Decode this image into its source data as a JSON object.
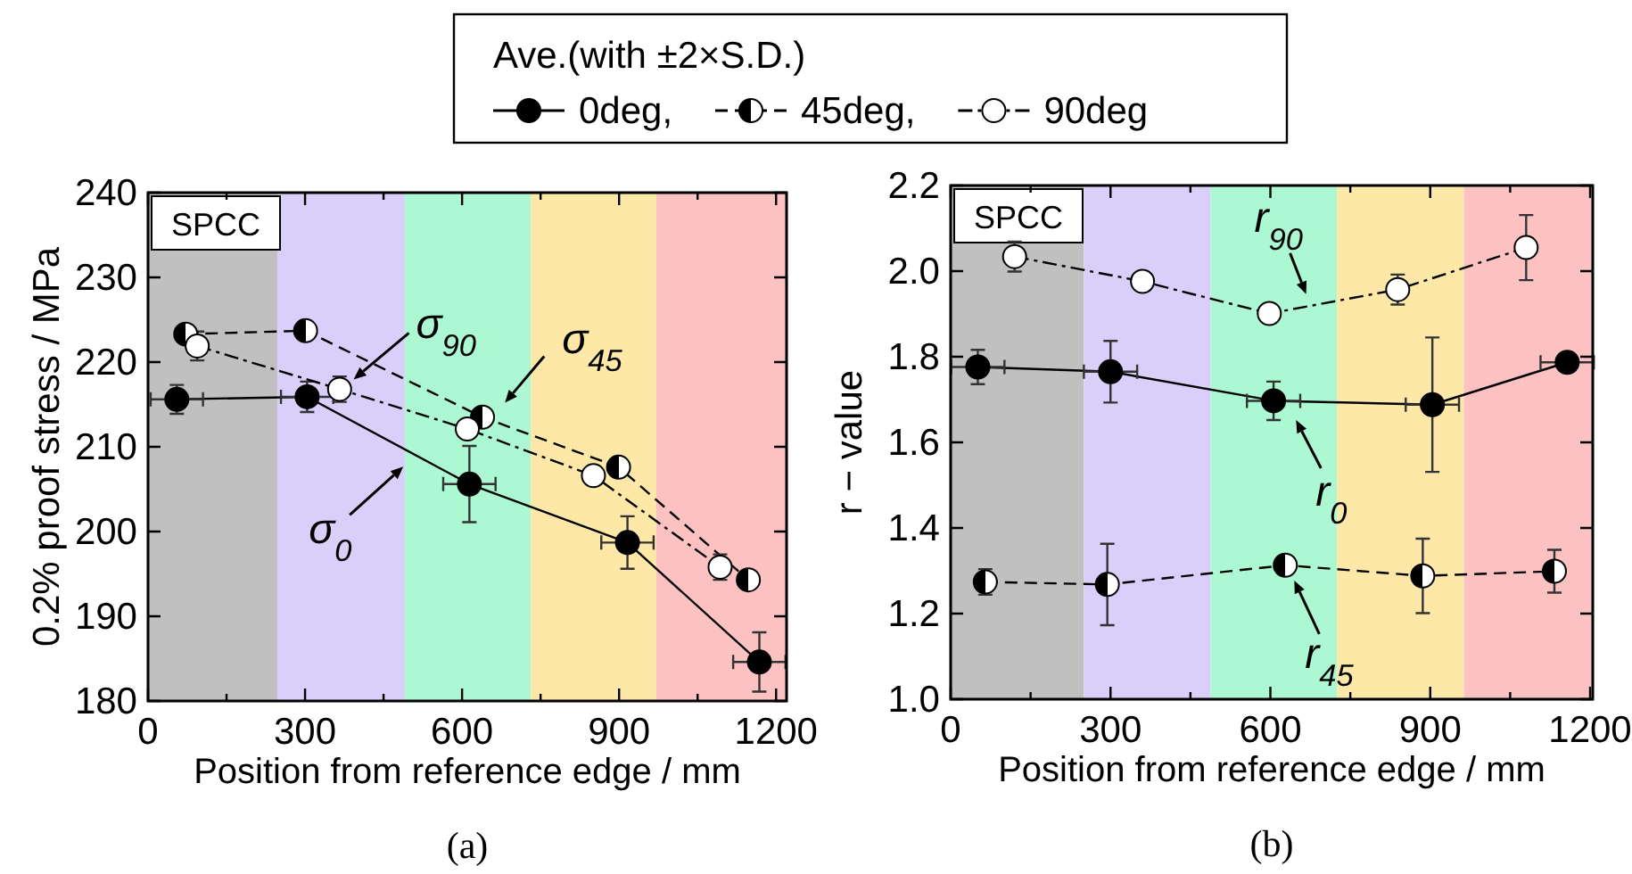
{
  "chart_data": [
    {
      "type": "line",
      "title": "(a)",
      "xlabel": "Position from reference edge / mm",
      "ylabel": "0.2% proof stress  / MPa",
      "legend_title": "Ave.(with ±2×S.D.)",
      "legend": "top",
      "xlim": [
        0,
        1220
      ],
      "ylim": [
        180,
        240
      ],
      "xticks": [
        0,
        {
          "value": 150,
          "label": null
        },
        300,
        {
          "value": 450,
          "label": null
        },
        600,
        {
          "value": 750,
          "label": null
        },
        900,
        {
          "value": 1050,
          "label": null
        },
        1200
      ],
      "yticks": [
        180,
        190,
        200,
        210,
        220,
        230,
        240
      ],
      "bands": [
        {
          "axis": "x",
          "from": 0,
          "to": 247,
          "color": "#c0c0c0"
        },
        {
          "axis": "x",
          "from": 247,
          "to": 491,
          "color": "#d9cffa"
        },
        {
          "axis": "x",
          "from": 491,
          "to": 731,
          "color": "#acf8d2"
        },
        {
          "axis": "x",
          "from": 731,
          "to": 971,
          "color": "#fde8a8"
        },
        {
          "axis": "x",
          "from": 971,
          "to": 1220,
          "color": "#fcc2c2"
        }
      ],
      "series": [
        {
          "name": "0deg,",
          "color": "#000000",
          "line_style": "solid",
          "marker": "circle",
          "x": [
            55,
            304,
            614,
            916,
            1168
          ],
          "values": [
            215.6,
            215.9,
            205.6,
            198.7,
            184.6
          ],
          "errors": [
            1.7,
            1.8,
            4.5,
            3.1,
            3.5
          ],
          "xerrors": [
            50,
            50,
            50,
            50,
            50
          ]
        },
        {
          "name": "45deg,",
          "color": "#000000",
          "line_style": "dashed",
          "marker": "circle",
          "x": [
            72,
            301,
            639,
            899,
            1147
          ],
          "values": [
            223.3,
            223.7,
            213.5,
            207.6,
            194.3
          ]
        },
        {
          "name": "90deg",
          "color": "#000000",
          "line_style": "dotted",
          "marker": "circle",
          "x": [
            94,
            366,
            610,
            851,
            1093
          ],
          "values": [
            221.9,
            216.8,
            212.1,
            206.6,
            195.8
          ],
          "errors": [
            1.7,
            1.5,
            null,
            null,
            1.5
          ]
        }
      ],
      "annotations": [
        "SPCC",
        "σ$_{90}$",
        "σ$_{45}$",
        "σ$_{0}$"
      ]
    },
    {
      "type": "line",
      "title": "(b)",
      "xlabel": "Position from reference edge / mm",
      "ylabel": "r − value",
      "xlim": [
        0,
        1205
      ],
      "ylim": [
        1.0,
        2.2
      ],
      "xticks": [
        0,
        {
          "value": 150,
          "label": null
        },
        300,
        {
          "value": 450,
          "label": null
        },
        600,
        {
          "value": 750,
          "label": null
        },
        900,
        {
          "value": 1050,
          "label": null
        },
        1200
      ],
      "yticks": [
        {
          "value": 1.0,
          "label": "1.0"
        },
        1.2,
        1.4,
        1.6,
        1.8,
        {
          "value": 2.0,
          "label": "2.0"
        },
        2.2
      ],
      "bands": [
        {
          "axis": "x",
          "from": 0,
          "to": 250,
          "color": "#c0c0c0"
        },
        {
          "axis": "x",
          "from": 250,
          "to": 488,
          "color": "#d9cffa"
        },
        {
          "axis": "x",
          "from": 488,
          "to": 725,
          "color": "#acf8d2"
        },
        {
          "axis": "x",
          "from": 725,
          "to": 963,
          "color": "#fde8a8"
        },
        {
          "axis": "x",
          "from": 963,
          "to": 1205,
          "color": "#fcc2c2"
        }
      ],
      "series": [
        {
          "color": "#000000",
          "line_style": "solid",
          "marker": "circle",
          "x": [
            51,
            300,
            606,
            904,
            1157
          ],
          "values": [
            1.776,
            1.765,
            1.697,
            1.688,
            1.787
          ],
          "errors": [
            0.04,
            0.072,
            0.045,
            0.157,
            null
          ],
          "xerrors": [
            50,
            50,
            50,
            50,
            50
          ]
        },
        {
          "color": "#000000",
          "line_style": "dashed",
          "marker": "circle",
          "x": [
            65,
            294,
            628,
            886,
            1133
          ],
          "values": [
            1.274,
            1.268,
            1.313,
            1.288,
            1.299
          ],
          "errors": [
            0.03,
            0.095,
            null,
            0.087,
            0.05
          ]
        },
        {
          "color": "#000000",
          "line_style": "dotted",
          "marker": "circle",
          "x": [
            120,
            360,
            598,
            839,
            1080
          ],
          "values": [
            2.034,
            1.976,
            1.901,
            1.957,
            2.055
          ],
          "errors": [
            0.035,
            null,
            null,
            0.035,
            0.076
          ]
        }
      ],
      "annotations": [
        "SPCC",
        "r$_{90}$",
        "r$_{0}$",
        "r$_{45}$"
      ]
    }
  ]
}
